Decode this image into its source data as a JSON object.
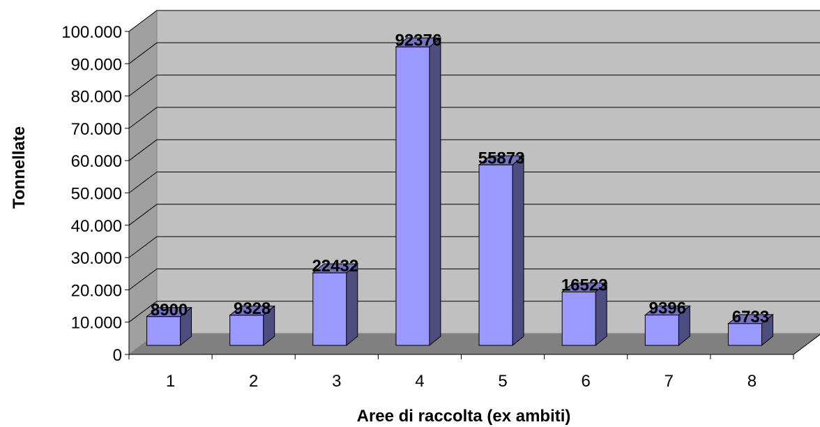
{
  "colors": {
    "back_wall": "#c0c0c0",
    "side_wall": "#a0a0a0",
    "floor": "#808080",
    "bar_front": "#9999ff",
    "bar_side": "#4d4d80",
    "bar_top": "#7373c0"
  },
  "chart_data": {
    "type": "bar",
    "categories": [
      "1",
      "2",
      "3",
      "4",
      "5",
      "6",
      "7",
      "8"
    ],
    "values": [
      8900,
      9328,
      22432,
      92376,
      55873,
      16523,
      9396,
      6733
    ],
    "data_labels": [
      "8900",
      "9328",
      "22432",
      "92376",
      "55873",
      "16523",
      "9396",
      "6733"
    ],
    "y_ticks": [
      0,
      10000,
      20000,
      30000,
      40000,
      50000,
      60000,
      70000,
      80000,
      90000,
      100000
    ],
    "y_tick_labels": [
      "0",
      "10.000",
      "20.000",
      "30.000",
      "40.000",
      "50.000",
      "60.000",
      "70.000",
      "80.000",
      "90.000",
      "100.000"
    ],
    "ylim": [
      0,
      100000
    ],
    "xlabel": "Aree di raccolta (ex ambiti)",
    "ylabel": "Tonnellate",
    "grid": true,
    "legend": "none",
    "style": "3d-column"
  }
}
